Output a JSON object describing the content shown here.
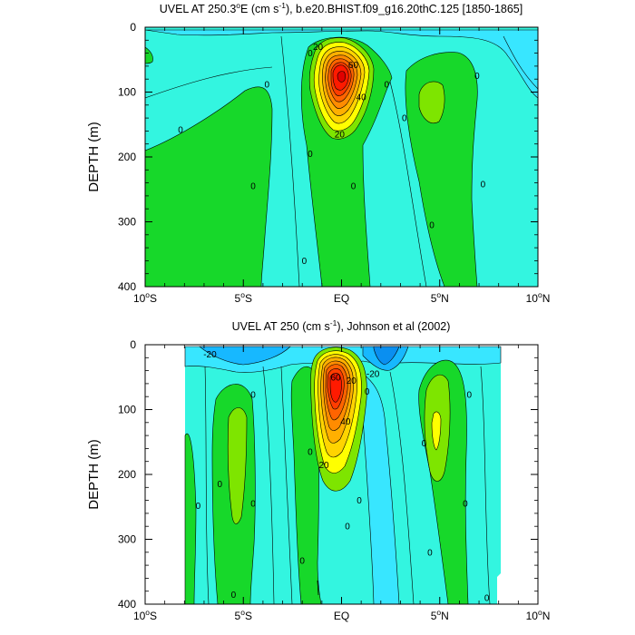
{
  "colors": {
    "background_cyan": "#33f5e0",
    "light_cyan": "#38e6ff",
    "sky_blue": "#17b8ff",
    "blue": "#0a8ff0",
    "green": "#17d82a",
    "light_green": "#7ee500",
    "yellow": "#ffff00",
    "orange": "#ffa000",
    "red": "#ff1a00",
    "line": "#000000"
  },
  "chart_data": [
    {
      "type": "contour",
      "title": {
        "main": "UVEL AT 250.3",
        "sup1": "o",
        "mid": "E (cm s",
        "sup2": "-1",
        "rest": "), b.e20.BHIST.f09_g16.20thC.125 [1850-1865]"
      },
      "ylabel": "DEPTH (m)",
      "xlim": [
        -10,
        10
      ],
      "ylim": [
        400,
        0
      ],
      "yticks": [
        "0",
        "100",
        "200",
        "300",
        "400"
      ],
      "xticks": [
        {
          "value": -10,
          "num": "10",
          "sup": "o",
          "hemi": "S"
        },
        {
          "value": -5,
          "num": "5",
          "sup": "o",
          "hemi": "S"
        },
        {
          "value": 0,
          "num": "EQ",
          "sup": "",
          "hemi": ""
        },
        {
          "value": 5,
          "num": "5",
          "sup": "o",
          "hemi": "N"
        },
        {
          "value": 10,
          "num": "10",
          "sup": "o",
          "hemi": "N"
        }
      ],
      "contour_labels": [
        {
          "text": "20",
          "lon": -1.2,
          "depth": 30
        },
        {
          "text": "60",
          "lon": 0.6,
          "depth": 58
        },
        {
          "text": "40",
          "lon": 1.0,
          "depth": 108
        },
        {
          "text": "20",
          "lon": -0.1,
          "depth": 165
        },
        {
          "text": "0",
          "lon": -1.6,
          "depth": 40
        },
        {
          "text": "0",
          "lon": -3.8,
          "depth": 88
        },
        {
          "text": "0",
          "lon": 2.3,
          "depth": 88
        },
        {
          "text": "0",
          "lon": 3.2,
          "depth": 140
        },
        {
          "text": "0",
          "lon": 6.9,
          "depth": 75
        },
        {
          "text": "0",
          "lon": -8.2,
          "depth": 158
        },
        {
          "text": "0",
          "lon": -1.6,
          "depth": 195
        },
        {
          "text": "0",
          "lon": -4.5,
          "depth": 245
        },
        {
          "text": "0",
          "lon": 0.6,
          "depth": 245
        },
        {
          "text": "0",
          "lon": 7.2,
          "depth": 242
        },
        {
          "text": "0",
          "lon": 4.6,
          "depth": 305
        },
        {
          "text": "0",
          "lon": -1.9,
          "depth": 360
        }
      ]
    },
    {
      "type": "contour",
      "title": {
        "main": "UVEL AT 250 (cm s",
        "sup1": "-1",
        "rest": "), Johnson et al (2002)"
      },
      "ylabel": "DEPTH (m)",
      "xlim": [
        -10,
        10
      ],
      "ylim": [
        400,
        0
      ],
      "yticks": [
        "0",
        "100",
        "200",
        "300",
        "400"
      ],
      "xticks": [
        {
          "value": -10,
          "num": "10",
          "sup": "o",
          "hemi": "S"
        },
        {
          "value": -5,
          "num": "5",
          "sup": "o",
          "hemi": "S"
        },
        {
          "value": 0,
          "num": "EQ",
          "sup": "",
          "hemi": ""
        },
        {
          "value": 5,
          "num": "5",
          "sup": "o",
          "hemi": "N"
        },
        {
          "value": 10,
          "num": "10",
          "sup": "o",
          "hemi": "N"
        }
      ],
      "contour_labels": [
        {
          "text": "-20",
          "lon": -6.7,
          "depth": 15
        },
        {
          "text": "60",
          "lon": -0.3,
          "depth": 50
        },
        {
          "text": "20",
          "lon": 0.5,
          "depth": 55
        },
        {
          "text": "-20",
          "lon": 1.6,
          "depth": 45
        },
        {
          "text": "40",
          "lon": 0.2,
          "depth": 118
        },
        {
          "text": "20",
          "lon": -0.9,
          "depth": 185
        },
        {
          "text": "0",
          "lon": 1.3,
          "depth": 72
        },
        {
          "text": "0",
          "lon": -4.5,
          "depth": 77
        },
        {
          "text": "0",
          "lon": 6.5,
          "depth": 77
        },
        {
          "text": "0",
          "lon": -6.2,
          "depth": 215
        },
        {
          "text": "0",
          "lon": -7.3,
          "depth": 248
        },
        {
          "text": "0",
          "lon": -4.5,
          "depth": 245
        },
        {
          "text": "0",
          "lon": -1.6,
          "depth": 165
        },
        {
          "text": "0",
          "lon": 0.9,
          "depth": 240
        },
        {
          "text": "0",
          "lon": 4.2,
          "depth": 152
        },
        {
          "text": "0",
          "lon": 6.3,
          "depth": 245
        },
        {
          "text": "0",
          "lon": 0.3,
          "depth": 280
        },
        {
          "text": "0",
          "lon": -2.0,
          "depth": 333
        },
        {
          "text": "0",
          "lon": 4.5,
          "depth": 320
        },
        {
          "text": "0",
          "lon": -5.5,
          "depth": 385
        },
        {
          "text": "0",
          "lon": 7.4,
          "depth": 390
        }
      ]
    }
  ]
}
